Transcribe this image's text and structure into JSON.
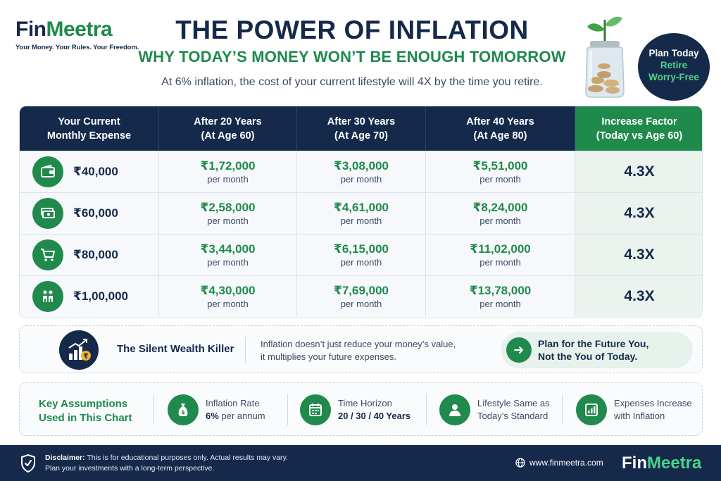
{
  "brand": {
    "name_part1": "Fin",
    "name_part2": "Meetra",
    "tagline": "Your Money. Your Rules. Your Freedom."
  },
  "header": {
    "title": "THE POWER OF INFLATION",
    "subtitle": "WHY TODAY’S MONEY WON’T BE ENOUGH TOMORROW",
    "tagline": "At 6% inflation, the cost of your current lifestyle will 4X by the time you retire."
  },
  "badge": {
    "line1": "Plan Today",
    "line2": "Retire",
    "line3": "Worry-Free"
  },
  "table": {
    "headers": [
      {
        "line1": "Your Current",
        "line2": "Monthly Expense"
      },
      {
        "line1": "After 20 Years",
        "line2": "(At Age 60)"
      },
      {
        "line1": "After 30 Years",
        "line2": "(At Age 70)"
      },
      {
        "line1": "After 40 Years",
        "line2": "(At Age 80)"
      },
      {
        "line1": "Increase Factor",
        "line2": "(Today vs Age 60)"
      }
    ],
    "per_month_label": "per month",
    "rows": [
      {
        "icon": "wallet-icon",
        "current": "₹40,000",
        "y20": "₹1,72,000",
        "y30": "₹3,08,000",
        "y40": "₹5,51,000",
        "factor": "4.3X"
      },
      {
        "icon": "cash-icon",
        "current": "₹60,000",
        "y20": "₹2,58,000",
        "y30": "₹4,61,000",
        "y40": "₹8,24,000",
        "factor": "4.3X"
      },
      {
        "icon": "cart-icon",
        "current": "₹80,000",
        "y20": "₹3,44,000",
        "y30": "₹6,15,000",
        "y40": "₹11,02,000",
        "factor": "4.3X"
      },
      {
        "icon": "family-icon",
        "current": "₹1,00,000",
        "y20": "₹4,30,000",
        "y30": "₹7,69,000",
        "y40": "₹13,78,000",
        "factor": "4.3X"
      }
    ]
  },
  "killer": {
    "title": "The Silent Wealth Killer",
    "text_line1": "Inflation doesn’t just reduce your money’s value,",
    "text_line2": "it multiplies your future expenses.",
    "cta_line1": "Plan for the Future You,",
    "cta_line2": "Not the You of Today."
  },
  "assumptions": {
    "title_line1": "Key Assumptions",
    "title_line2": "Used in This Chart",
    "items": [
      {
        "icon": "money-bag-icon",
        "line1": "Inflation Rate",
        "line2_bold": "6%",
        "line2_rest": " per annum"
      },
      {
        "icon": "calendar-icon",
        "line1": "Time Horizon",
        "line2_bold": "20 / 30 / 40 Years",
        "line2_rest": ""
      },
      {
        "icon": "person-icon",
        "line1": "Lifestyle Same as",
        "line2_bold": "",
        "line2_rest": "Today’s Standard"
      },
      {
        "icon": "bar-chart-icon",
        "line1": "Expenses Increase",
        "line2_bold": "",
        "line2_rest": "with Inflation"
      }
    ]
  },
  "footer": {
    "disclaimer_label": "Disclaimer:",
    "disclaimer_line1": " This is for educational purposes only. Actual results may vary.",
    "disclaimer_line2": "Plan your investments with a long-term perspective.",
    "website": "www.finmeetra.com"
  },
  "colors": {
    "navy": "#15294b",
    "green": "#1f8a4c",
    "light_green": "#4cd38a"
  }
}
